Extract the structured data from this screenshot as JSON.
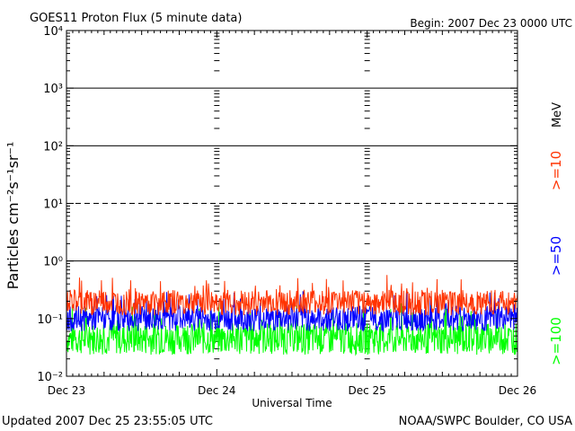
{
  "chart_data": {
    "type": "line",
    "title": "GOES11 Proton Flux (5 minute data)",
    "begin_label": "Begin: 2007 Dec 23 0000 UTC",
    "xlabel": "Universal Time",
    "ylabel": "Particles cm⁻²s⁻¹sr⁻¹",
    "y_scale": "log",
    "ylim": [
      0.01,
      10000
    ],
    "y_ticks": [
      {
        "value": 0.01,
        "label": "10⁻²"
      },
      {
        "value": 0.1,
        "label": "10⁻¹"
      },
      {
        "value": 1,
        "label": "10⁰"
      },
      {
        "value": 10,
        "label": "10¹"
      },
      {
        "value": 100,
        "label": "10²"
      },
      {
        "value": 1000,
        "label": "10³"
      },
      {
        "value": 10000,
        "label": "10⁴"
      }
    ],
    "x_ticks": [
      "Dec 23",
      "Dec 24",
      "Dec 25",
      "Dec 26"
    ],
    "xlim_days": [
      0,
      3
    ],
    "reference_lines": [
      {
        "value": 10,
        "style": "dashed"
      },
      {
        "value": 1,
        "style": "solid"
      },
      {
        "value": 100,
        "style": "solid"
      },
      {
        "value": 1000,
        "style": "solid"
      }
    ],
    "units_label": "MeV",
    "series": [
      {
        "name": ">=10",
        "color": "#ff3300",
        "base": 0.19,
        "spread": 0.22
      },
      {
        "name": ">=50",
        "color": "#0000ff",
        "base": 0.1,
        "spread": 0.22
      },
      {
        "name": ">=100",
        "color": "#00ff00",
        "base": 0.045,
        "spread": 0.28
      }
    ]
  },
  "footer": {
    "updated": "Updated 2007 Dec 25 23:55:05 UTC",
    "credit": "NOAA/SWPC Boulder, CO USA"
  }
}
